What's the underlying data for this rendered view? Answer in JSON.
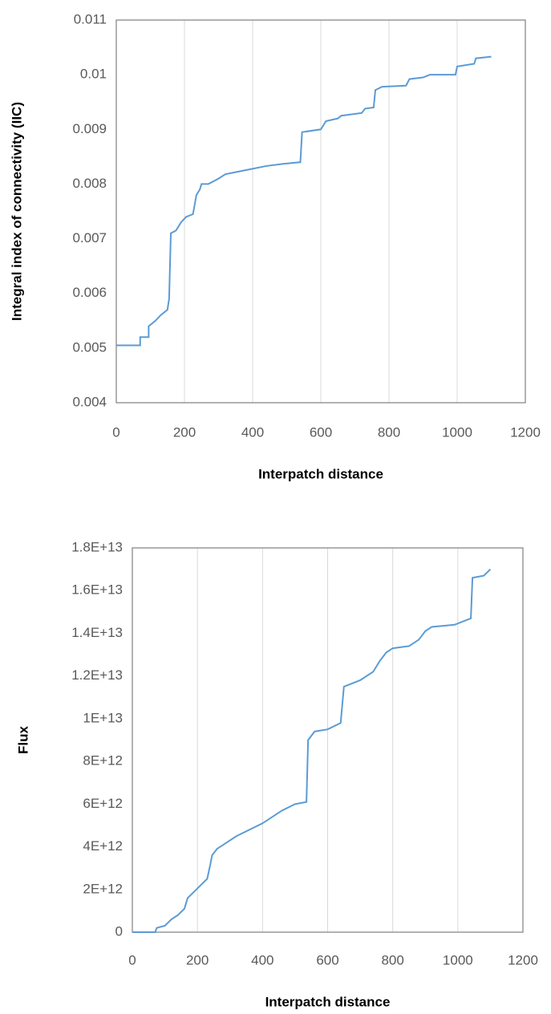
{
  "chart_data": [
    {
      "type": "line",
      "x_label": "Interpatch distance",
      "y_label": "Integral index of connectivity (IIC)",
      "color": "#5b9bd5",
      "grid": true,
      "x": [
        0,
        70,
        70,
        95,
        95,
        115,
        130,
        150,
        155,
        160,
        175,
        190,
        205,
        225,
        235,
        245,
        250,
        270,
        300,
        320,
        360,
        400,
        440,
        490,
        540,
        545,
        600,
        610,
        615,
        650,
        660,
        720,
        730,
        755,
        760,
        780,
        850,
        860,
        900,
        920,
        995,
        1000,
        1050,
        1055,
        1100
      ],
      "values": [
        0.00505,
        0.00505,
        0.0052,
        0.0052,
        0.0054,
        0.0055,
        0.0056,
        0.0057,
        0.0059,
        0.0071,
        0.00715,
        0.0073,
        0.0074,
        0.00745,
        0.0078,
        0.0079,
        0.008,
        0.008,
        0.0081,
        0.00818,
        0.00823,
        0.00828,
        0.00833,
        0.00837,
        0.0084,
        0.00895,
        0.009,
        0.0091,
        0.00915,
        0.0092,
        0.00925,
        0.0093,
        0.00938,
        0.0094,
        0.00972,
        0.00978,
        0.0098,
        0.00992,
        0.00995,
        0.01,
        0.01,
        0.01015,
        0.0102,
        0.0103,
        0.01033
      ],
      "xlim": [
        0,
        1200
      ],
      "xticks": [
        0,
        200,
        400,
        600,
        800,
        1000,
        1200
      ],
      "ylim": [
        0.004,
        0.011
      ],
      "yticks": [
        0.004,
        0.005,
        0.006,
        0.007,
        0.008,
        0.009,
        0.01,
        0.011
      ]
    },
    {
      "type": "line",
      "x_label": "Interpatch distance",
      "y_label": "Flux",
      "color": "#5b9bd5",
      "grid": true,
      "x": [
        0,
        70,
        75,
        100,
        120,
        140,
        160,
        170,
        190,
        210,
        230,
        240,
        245,
        260,
        300,
        320,
        360,
        400,
        430,
        460,
        500,
        535,
        540,
        560,
        600,
        640,
        650,
        700,
        740,
        760,
        780,
        800,
        850,
        880,
        900,
        920,
        990,
        1040,
        1045,
        1080,
        1100
      ],
      "values": [
        0,
        0,
        200000000000,
        300000000000,
        600000000000,
        800000000000,
        1100000000000,
        1600000000000,
        1900000000000,
        2200000000000,
        2500000000000,
        3200000000000,
        3600000000000,
        3900000000000,
        4300000000000,
        4500000000000,
        4800000000000,
        5100000000000,
        5400000000000,
        5700000000000,
        6000000000000,
        6100000000000,
        9000000000000,
        9400000000000,
        9500000000000,
        9800000000000,
        11500000000000,
        11800000000000,
        12200000000000,
        12700000000000,
        13100000000000,
        13300000000000,
        13400000000000,
        13700000000000,
        14100000000000,
        14300000000000,
        14400000000000,
        14700000000000,
        16600000000000,
        16700000000000,
        17000000000000
      ],
      "xlim": [
        0,
        1200
      ],
      "xticks": [
        0,
        200,
        400,
        600,
        800,
        1000,
        1200
      ],
      "ylim": [
        0,
        18000000000000
      ],
      "yticks": [
        0,
        {
          "value": 2000000000000,
          "label": "2E+12"
        },
        {
          "value": 4000000000000,
          "label": "4E+12"
        },
        {
          "value": 6000000000000,
          "label": "6E+12"
        },
        {
          "value": 8000000000000,
          "label": "8E+12"
        },
        {
          "value": 10000000000000,
          "label": "1E+13"
        },
        {
          "value": 12000000000000,
          "label": "1.2E+13"
        },
        {
          "value": 14000000000000,
          "label": "1.4E+13"
        },
        {
          "value": 16000000000000,
          "label": "1.6E+13"
        },
        {
          "value": 18000000000000,
          "label": "1.8E+13"
        }
      ]
    }
  ]
}
